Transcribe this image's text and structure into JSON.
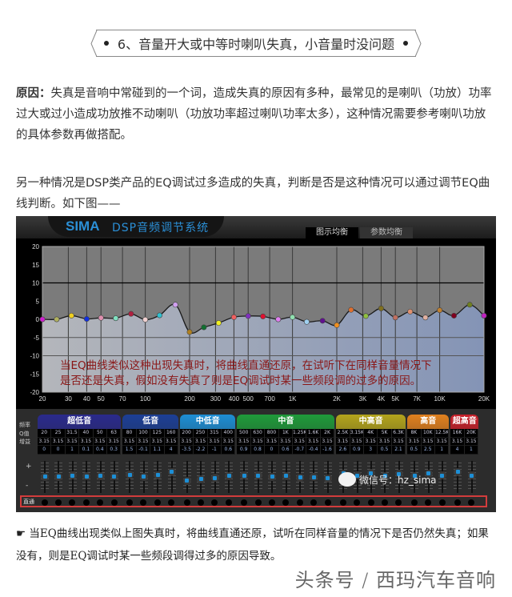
{
  "heading": "6、音量开大或中等时喇叭失真，小音量时没问题",
  "paragraph1": {
    "label": "原因：",
    "text": "失真是音响中常碰到的一个词，造成失真的原因有多种，最常见的是喇叭（功放）功率过大或过小造成功放推不动喇叭（功放功率超过喇叭功率太多），这种情况需要参考喇叭功放的具体参数再做搭配。"
  },
  "paragraph2": "另一种情况是DSP类产品的EQ调试过多造成的失真，判断是否是这种情况可以通过调节EQ曲线判断。如下图——",
  "app": {
    "logo": "SIMA",
    "system_title": "DSP音频调节系统",
    "tabs": [
      {
        "label": "图示均衡",
        "active": true
      },
      {
        "label": "参数均衡",
        "active": false
      }
    ],
    "row_labels": {
      "freq": "频率",
      "q": "Q值",
      "gain": "增益"
    },
    "slider_plus": "+",
    "slider_minus": "-",
    "direct_label": "直通",
    "annotation_line1": "当EQ曲线类似这种出现失真时，将曲线直通还原，在试听下在同样音量情况下",
    "annotation_line2": "是否还是失真，假如没有失真了则是EQ调试时某一些频段调的过多的原因。",
    "watermark": "微信号：hz_sima",
    "groups": [
      {
        "name": "超低音",
        "color": "#2a2a8c",
        "bands": [
          0,
          1,
          2,
          3,
          4,
          5
        ]
      },
      {
        "name": "低音",
        "color": "#1c3f96",
        "bands": [
          6,
          7,
          8,
          9
        ]
      },
      {
        "name": "中低音",
        "color": "#1d8ed4",
        "bands": [
          10,
          11,
          12,
          13
        ]
      },
      {
        "name": "中音",
        "color": "#1f9a3a",
        "bands": [
          14,
          15,
          16,
          17,
          18,
          19,
          20
        ]
      },
      {
        "name": "中高音",
        "color": "#b3a41c",
        "bands": [
          21,
          22,
          23,
          24,
          25
        ]
      },
      {
        "name": "高音",
        "color": "#e0801e",
        "bands": [
          26,
          27,
          28
        ]
      },
      {
        "name": "超高音",
        "color": "#c8202a",
        "bands": [
          29,
          30
        ]
      }
    ]
  },
  "chart_data": {
    "type": "line",
    "x_scale": "log",
    "xlim": [
      20,
      20000
    ],
    "ylim": [
      -20,
      20
    ],
    "x_tick_labels": [
      "20",
      "30",
      "40",
      "50",
      "70",
      "100",
      "200",
      "300",
      "400",
      "500",
      "700",
      "1K",
      "2K",
      "3K",
      "4K",
      "5K",
      "7K",
      "10K",
      "20K"
    ],
    "x_tick_values": [
      20,
      30,
      40,
      50,
      70,
      100,
      200,
      300,
      400,
      500,
      700,
      1000,
      2000,
      3000,
      4000,
      5000,
      7000,
      10000,
      20000
    ],
    "y_tick_values": [
      20,
      15,
      10,
      5,
      0,
      -5,
      -10,
      -15,
      -20
    ],
    "bands": [
      {
        "freq": "20",
        "hz": 20,
        "q": "3.15",
        "gain": 0
      },
      {
        "freq": "25",
        "hz": 25,
        "q": "3.15",
        "gain": 0
      },
      {
        "freq": "31.5",
        "hz": 31.5,
        "q": "3.15",
        "gain": 1
      },
      {
        "freq": "40",
        "hz": 40,
        "q": "3.15",
        "gain": 0.1
      },
      {
        "freq": "50",
        "hz": 50,
        "q": "3.15",
        "gain": 0.4
      },
      {
        "freq": "63",
        "hz": 63,
        "q": "3.15",
        "gain": 0.3
      },
      {
        "freq": "80",
        "hz": 80,
        "q": "3.15",
        "gain": 1.5
      },
      {
        "freq": "100",
        "hz": 100,
        "q": "3.15",
        "gain": -0.1
      },
      {
        "freq": "125",
        "hz": 125,
        "q": "3.15",
        "gain": 1.1
      },
      {
        "freq": "160",
        "hz": 160,
        "q": "3.15",
        "gain": 4
      },
      {
        "freq": "200",
        "hz": 200,
        "q": "3.15",
        "gain": -3.5
      },
      {
        "freq": "250",
        "hz": 250,
        "q": "3.15",
        "gain": -2.2
      },
      {
        "freq": "315",
        "hz": 315,
        "q": "3.15",
        "gain": -1
      },
      {
        "freq": "400",
        "hz": 400,
        "q": "3.15",
        "gain": 0.6
      },
      {
        "freq": "500",
        "hz": 500,
        "q": "3.15",
        "gain": 0.9
      },
      {
        "freq": "630",
        "hz": 630,
        "q": "3.15",
        "gain": 0.8
      },
      {
        "freq": "800",
        "hz": 800,
        "q": "3.15",
        "gain": 0
      },
      {
        "freq": "1K",
        "hz": 1000,
        "q": "3.15",
        "gain": 0.6
      },
      {
        "freq": "1.25K",
        "hz": 1250,
        "q": "3.15",
        "gain": -0.7
      },
      {
        "freq": "1.6K",
        "hz": 1600,
        "q": "3.15",
        "gain": -0.4
      },
      {
        "freq": "2K",
        "hz": 2000,
        "q": "3.15",
        "gain": -1.6
      },
      {
        "freq": "2.5K",
        "hz": 2500,
        "q": "3.15",
        "gain": 2.6
      },
      {
        "freq": "3.15K",
        "hz": 3150,
        "q": "3.15",
        "gain": 0.9
      },
      {
        "freq": "4K",
        "hz": 4000,
        "q": "3.15",
        "gain": 3
      },
      {
        "freq": "5K",
        "hz": 5000,
        "q": "3.15",
        "gain": 0.5
      },
      {
        "freq": "6.3K",
        "hz": 6300,
        "q": "3.15",
        "gain": 2.1
      },
      {
        "freq": "8K",
        "hz": 8000,
        "q": "3.15",
        "gain": 0.5
      },
      {
        "freq": "10K",
        "hz": 10000,
        "q": "3.15",
        "gain": 2.5
      },
      {
        "freq": "12.5K",
        "hz": 12500,
        "q": "3.15",
        "gain": 1
      },
      {
        "freq": "16K",
        "hz": 16000,
        "q": "3.15",
        "gain": 4
      },
      {
        "freq": "20K",
        "hz": 20000,
        "q": "3.15",
        "gain": 1
      }
    ],
    "point_colors": [
      "#d020d0",
      "#b0b060",
      "#f0d020",
      "#1030e0",
      "#e090b0",
      "#80e0c0",
      "#b02040",
      "#f0d0d0",
      "#30c0d0",
      "#d0a0f0",
      "#b08020",
      "#107030",
      "#f0f020",
      "#f06060",
      "#8030c0",
      "#e01030",
      "#e080f0",
      "#90e0b0",
      "#a0d0f0",
      "#601090",
      "#f09020",
      "#e07030",
      "#90c040",
      "#807020",
      "#c07060",
      "#e09070",
      "#e0b0a0",
      "#c08030",
      "#800020",
      "#708020",
      "#c020c0"
    ]
  },
  "bottom_text": {
    "icon": "pointing-hand-icon",
    "icon_glyph": "☛",
    "text": "当EQ曲线出现类似上图失真时，将曲线直通还原，试听在同样音量的情况下是否仍然失真；如果没有，则是EQ调试时某一些频段调得过多的原因导致。"
  },
  "source_watermark": "头条号 / 西玛汽车音响"
}
